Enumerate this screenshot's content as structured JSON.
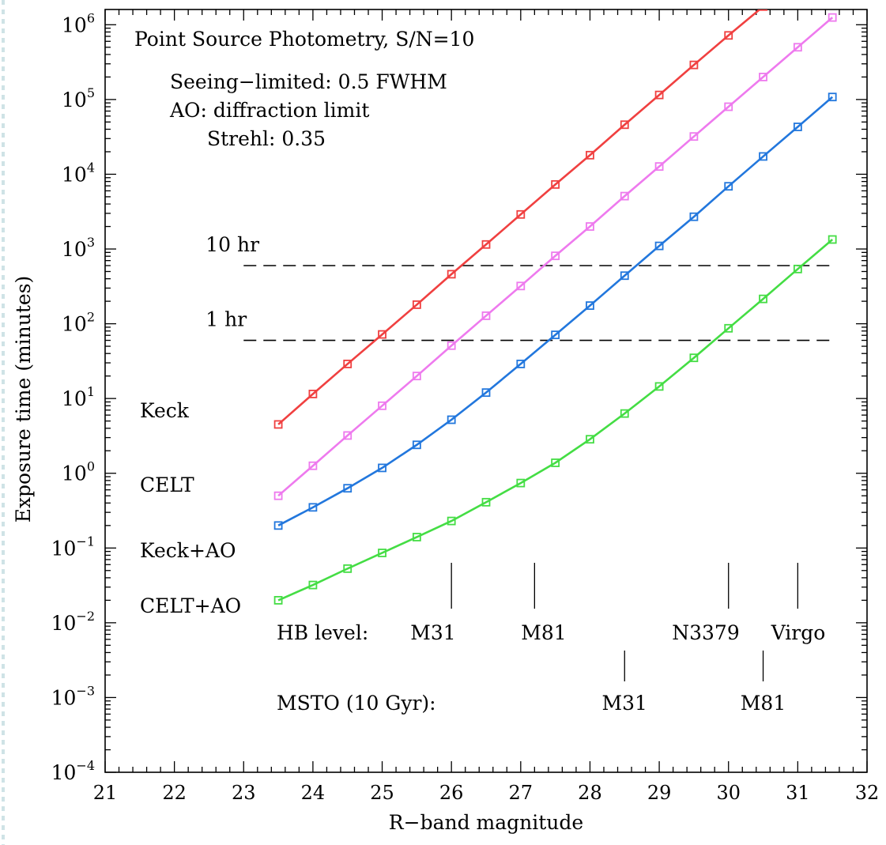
{
  "chart_data": {
    "type": "line",
    "xlabel": "R−band magnitude",
    "ylabel": "Exposure time (minutes)",
    "yscale": "log",
    "xlim": [
      21,
      32
    ],
    "ylim": [
      0.0001,
      1600000
    ],
    "x_ticks": [
      21,
      22,
      23,
      24,
      25,
      26,
      27,
      28,
      29,
      30,
      31,
      32
    ],
    "y_ticks": [
      {
        "value": 0.0001,
        "base": "10",
        "exp": "−4"
      },
      {
        "value": 0.001,
        "base": "10",
        "exp": "−3"
      },
      {
        "value": 0.01,
        "base": "10",
        "exp": "−2"
      },
      {
        "value": 0.1,
        "base": "10",
        "exp": "−1"
      },
      {
        "value": 1,
        "base": "10",
        "exp": "0"
      },
      {
        "value": 10,
        "base": "10",
        "exp": "1"
      },
      {
        "value": 100,
        "base": "10",
        "exp": "2"
      },
      {
        "value": 1000,
        "base": "10",
        "exp": "3"
      },
      {
        "value": 10000,
        "base": "10",
        "exp": "4"
      },
      {
        "value": 100000,
        "base": "10",
        "exp": "5"
      },
      {
        "value": 1000000,
        "base": "10",
        "exp": "6"
      }
    ],
    "grid": false,
    "annotations": {
      "title": "Point Source Photometry, S/N=10",
      "lines": [
        "Seeing−limited: 0.5 FWHM",
        "AO: diffraction limit",
        "Strehl: 0.35"
      ]
    },
    "x": [
      23.5,
      24,
      24.5,
      25,
      25.5,
      26,
      26.5,
      27,
      27.5,
      28,
      28.5,
      29,
      29.5,
      30,
      30.5,
      31,
      31.5
    ],
    "series": [
      {
        "name": "Keck",
        "color": "#f04040",
        "values": [
          4.5,
          11.5,
          29,
          72,
          180,
          460,
          1150,
          2900,
          7300,
          18000,
          46000,
          115000,
          290000,
          720000,
          1750000,
          null,
          null
        ]
      },
      {
        "name": "CELT",
        "color": "#ee7aee",
        "values": [
          0.5,
          1.26,
          3.2,
          8.0,
          20,
          51,
          128,
          320,
          810,
          2000,
          5100,
          12700,
          32000,
          80000,
          200000,
          500000,
          1250000
        ]
      },
      {
        "name": "Keck+AO",
        "color": "#2277dd",
        "values": [
          0.2,
          0.35,
          0.63,
          1.18,
          2.4,
          5.2,
          12,
          29,
          71,
          175,
          440,
          1100,
          2700,
          6900,
          17300,
          43000,
          108000
        ]
      },
      {
        "name": "CELT+AO",
        "color": "#44dd44",
        "values": [
          0.02,
          0.032,
          0.053,
          0.086,
          0.14,
          0.23,
          0.41,
          0.74,
          1.38,
          2.85,
          6.3,
          14.5,
          35,
          87,
          215,
          540,
          1340
        ]
      }
    ],
    "hlines": [
      {
        "label": "10 hr",
        "value": 600,
        "from": 23,
        "to": 31.5
      },
      {
        "label": "1 hr",
        "value": 60,
        "from": 23,
        "to": 31.5
      }
    ],
    "hb_markers": {
      "label": "HB level:",
      "items": [
        {
          "name": "M31",
          "x": 26
        },
        {
          "name": "M81",
          "x": 27.2
        },
        {
          "name": "N3379",
          "x": 30
        },
        {
          "name": "Virgo",
          "x": 31
        }
      ]
    },
    "msto_markers": {
      "label": "MSTO (10 Gyr):",
      "items": [
        {
          "name": "M31",
          "x": 28.5
        },
        {
          "name": "M81",
          "x": 30.5
        }
      ]
    }
  }
}
